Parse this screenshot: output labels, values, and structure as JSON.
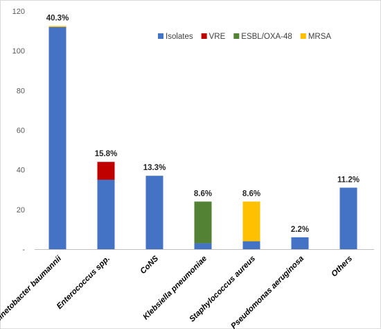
{
  "chart_data": {
    "type": "bar",
    "stacked": true,
    "categories": [
      "Acinetobacter baumannii",
      "Enterococcus spp.",
      "CoNS",
      "Klebsiella pneumoniae",
      "Staphylococcus aureus",
      "Pseudomonas aeruginosa",
      "Others"
    ],
    "series": [
      {
        "name": "Isolates",
        "color": "#4472c4",
        "values": [
          112,
          35,
          37,
          3,
          4,
          6,
          31
        ]
      },
      {
        "name": "VRE",
        "color": "#c00000",
        "values": [
          0,
          9,
          0,
          0,
          0,
          0,
          0
        ]
      },
      {
        "name": "ESBL/OXA-48",
        "color": "#548235",
        "values": [
          0,
          0,
          0,
          21,
          0,
          0,
          0
        ]
      },
      {
        "name": "MRSA",
        "color": "#ffc000",
        "values": [
          0.5,
          0,
          0,
          0,
          20,
          0,
          0
        ]
      }
    ],
    "data_labels": [
      "40.3%",
      "15.8%",
      "13.3%",
      "8.6%",
      "8.6%",
      "2.2%",
      "11.2%"
    ],
    "yticks": [
      "-",
      "20",
      "40",
      "60",
      "80",
      "100",
      "120"
    ],
    "ylim": [
      0,
      120
    ],
    "grid": false,
    "legend_position": "top-right"
  }
}
